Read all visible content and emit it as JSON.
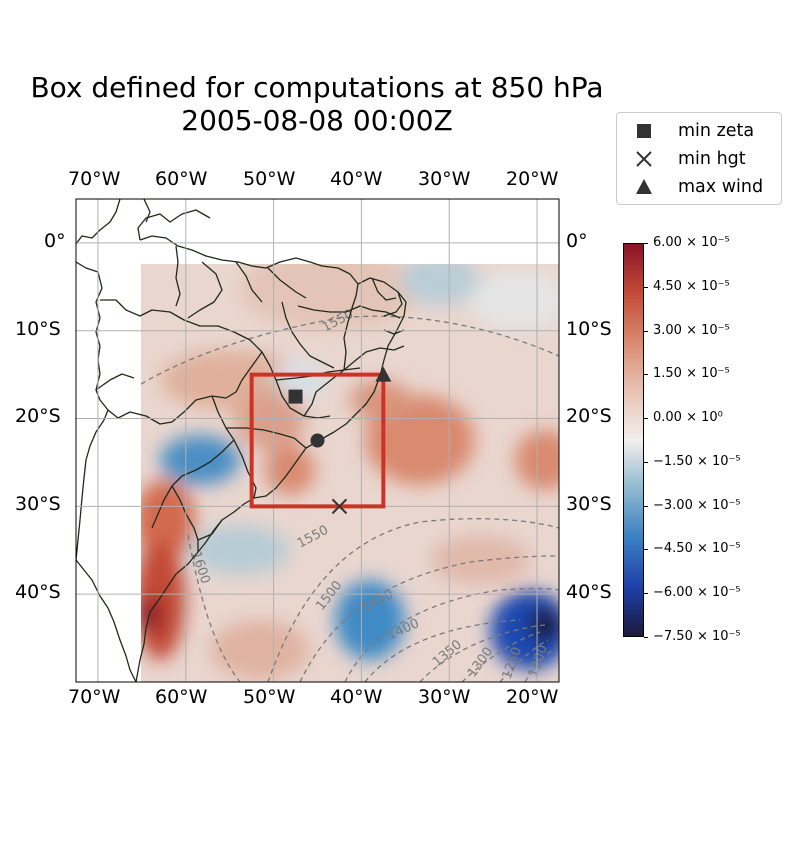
{
  "title_line1": "Box defined for computations at 850 hPa",
  "title_line2": "2005-08-08 00:00Z",
  "map": {
    "extent": {
      "lon_min": -72.5,
      "lon_max": -17.5,
      "lat_min": -50,
      "lat_max": 5
    },
    "grid": true,
    "field_name": "relative vorticity (zeta)",
    "lon_ticks": [
      {
        "lon": -70,
        "label": "70°W"
      },
      {
        "lon": -60,
        "label": "60°W"
      },
      {
        "lon": -50,
        "label": "50°W"
      },
      {
        "lon": -40,
        "label": "40°W"
      },
      {
        "lon": -30,
        "label": "30°W"
      },
      {
        "lon": -20,
        "label": "20°W"
      }
    ],
    "lat_ticks": [
      {
        "lat": 0,
        "label": "0°"
      },
      {
        "lat": -10,
        "label": "10°S"
      },
      {
        "lat": -20,
        "label": "20°S"
      },
      {
        "lat": -30,
        "label": "30°S"
      },
      {
        "lat": -40,
        "label": "40°S"
      }
    ],
    "box": {
      "lon_min": -52.5,
      "lon_max": -37.5,
      "lat_min": -30,
      "lat_max": -15,
      "color": "#cc3326"
    },
    "markers": [
      {
        "type": "square",
        "lon": -47.5,
        "lat": -17.5,
        "label": "min zeta"
      },
      {
        "type": "x",
        "lon": -42.5,
        "lat": -30,
        "label": "min hgt"
      },
      {
        "type": "triangle",
        "lon": -37.5,
        "lat": -15,
        "label": "max wind"
      },
      {
        "type": "circle",
        "lon": -45,
        "lat": -22.5,
        "label": ""
      }
    ],
    "contour_labels": [
      "1550",
      "1550",
      "1600",
      "1500",
      "1450",
      "1400",
      "1350",
      "1300",
      "1250",
      "1200"
    ]
  },
  "legend": {
    "items": [
      {
        "symbol": "square",
        "label": "min zeta"
      },
      {
        "symbol": "x",
        "label": "min hgt"
      },
      {
        "symbol": "triangle",
        "label": "max wind"
      }
    ]
  },
  "colorbar": {
    "min": -7.5e-05,
    "max": 6e-05,
    "colors": [
      "#1a1a3a",
      "#1f3fa8",
      "#3a7fc2",
      "#8fb8cf",
      "#f2efee",
      "#e8c3b4",
      "#d98a70",
      "#c24a36",
      "#8a1428"
    ],
    "ticks": [
      {
        "value": 6e-05,
        "label": "6.00 × 10⁻⁵"
      },
      {
        "value": 4.5e-05,
        "label": "4.50 × 10⁻⁵"
      },
      {
        "value": 3e-05,
        "label": "3.00 × 10⁻⁵"
      },
      {
        "value": 1.5e-05,
        "label": "1.50 × 10⁻⁵"
      },
      {
        "value": 0,
        "label": "0.00 × 10⁰"
      },
      {
        "value": -1.5e-05,
        "label": "−1.50 × 10⁻⁵"
      },
      {
        "value": -3e-05,
        "label": "−3.00 × 10⁻⁵"
      },
      {
        "value": -4.5e-05,
        "label": "−4.50 × 10⁻⁵"
      },
      {
        "value": -6e-05,
        "label": "−6.00 × 10⁻⁵"
      },
      {
        "value": -7.5e-05,
        "label": "−7.50 × 10⁻⁵"
      }
    ]
  }
}
